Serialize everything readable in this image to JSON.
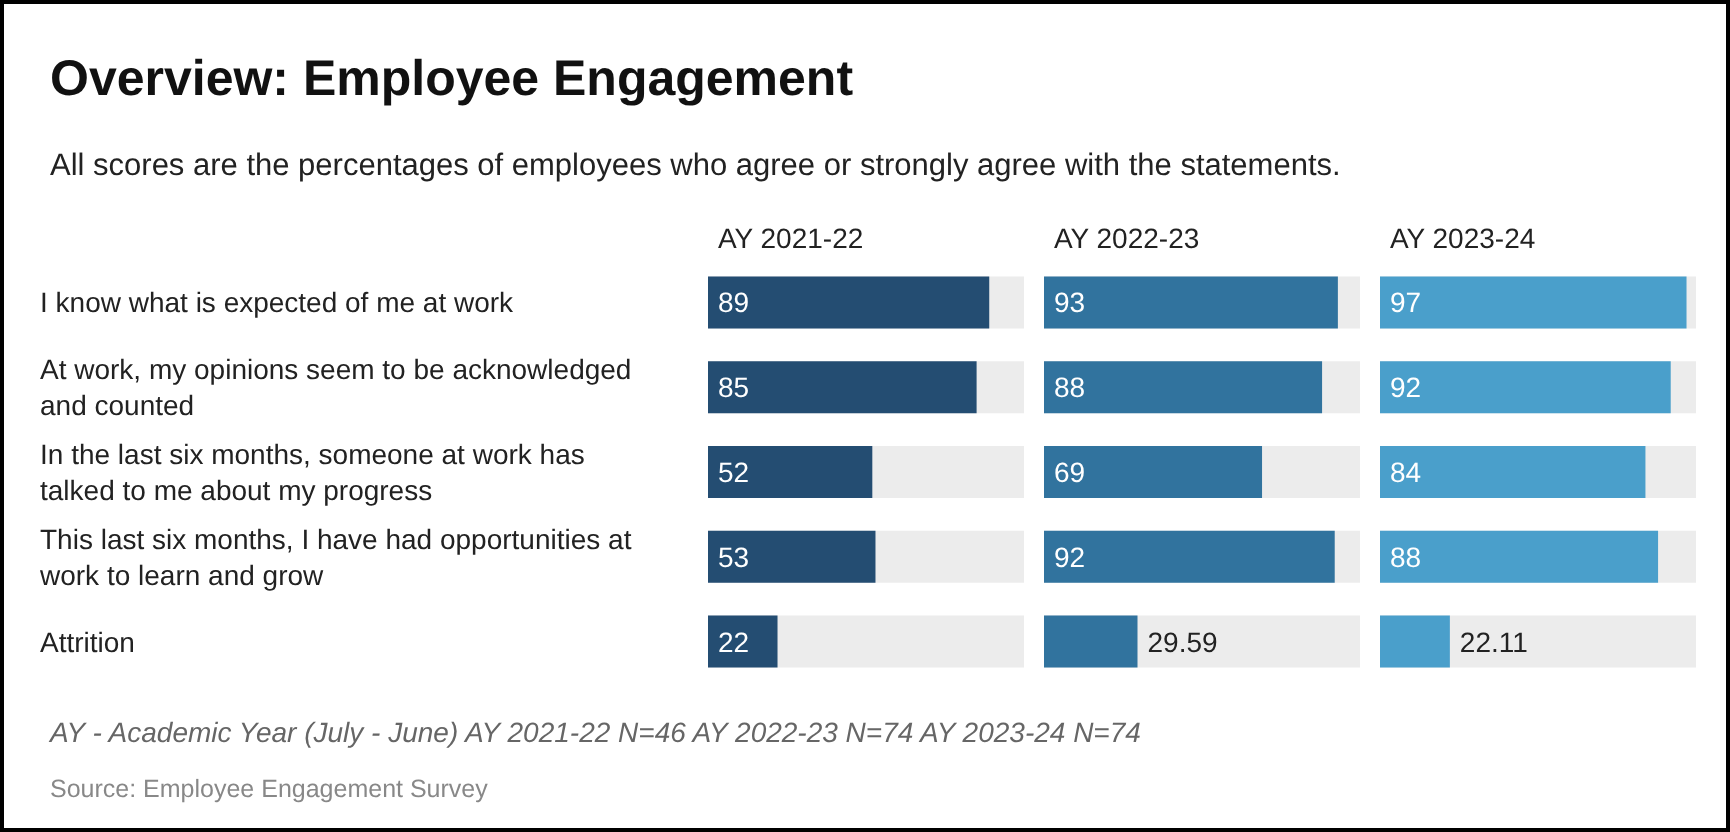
{
  "chart_data": [
    {
      "type": "other",
      "title": "Overview: Employee Engagement",
      "subtitle": "All scores are the percentages of employees who agree or strongly agree with the statements.",
      "annotations": [
        "AY - Academic Year (July - June) AY 2021-22 N=46 AY 2022-23 N=74 AY 2023-24 N=74",
        "Source: Employee Engagement Survey"
      ]
    },
    {
      "type": "bar",
      "orientation": "horizontal",
      "title": "AY 2021-22",
      "categories": [
        "I know what is expected of me at work",
        "At work, my opinions seem to be acknowledged and counted",
        "In the last six months, someone at work has talked to me about my progress",
        "This last six months, I have had opportunities at work to learn and grow",
        "Attrition"
      ],
      "values": [
        89,
        85,
        52,
        53,
        22
      ],
      "color": "#244d72",
      "xlim": [
        0,
        100
      ],
      "data_labels": true,
      "tick_labels": "y"
    },
    {
      "type": "bar",
      "orientation": "horizontal",
      "title": "AY 2022-23",
      "categories": [
        null,
        null,
        null,
        null,
        null
      ],
      "values": [
        93,
        88,
        69,
        92,
        29.59
      ],
      "color": "#31739e",
      "xlim": [
        0,
        100
      ],
      "data_labels": true,
      "tick_labels": false
    },
    {
      "type": "bar",
      "orientation": "horizontal",
      "title": "AY 2023-24",
      "categories": [
        null,
        null,
        null,
        null,
        null
      ],
      "values": [
        97,
        92,
        84,
        88,
        22.11
      ],
      "color": "#4a9fcb",
      "xlim": [
        0,
        100
      ],
      "data_labels": true,
      "tick_labels": false
    }
  ]
}
